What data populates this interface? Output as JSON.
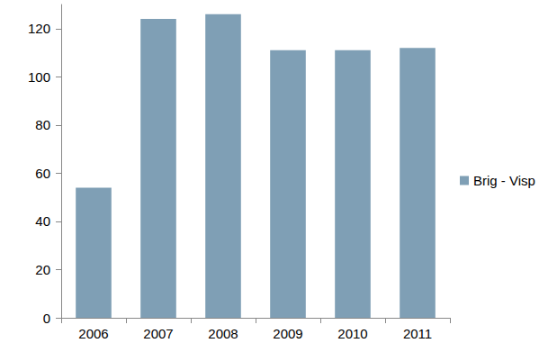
{
  "chart_data": {
    "type": "bar",
    "categories": [
      "2006",
      "2007",
      "2008",
      "2009",
      "2010",
      "2011"
    ],
    "series": [
      {
        "name": "Brig - Visp",
        "color": "#7f9fb5",
        "values": [
          54,
          124,
          126,
          111,
          111,
          112
        ]
      }
    ],
    "ylim": [
      0,
      130
    ],
    "yticks": [
      0,
      20,
      40,
      60,
      80,
      100,
      120
    ],
    "grid": false,
    "legend": "right"
  }
}
